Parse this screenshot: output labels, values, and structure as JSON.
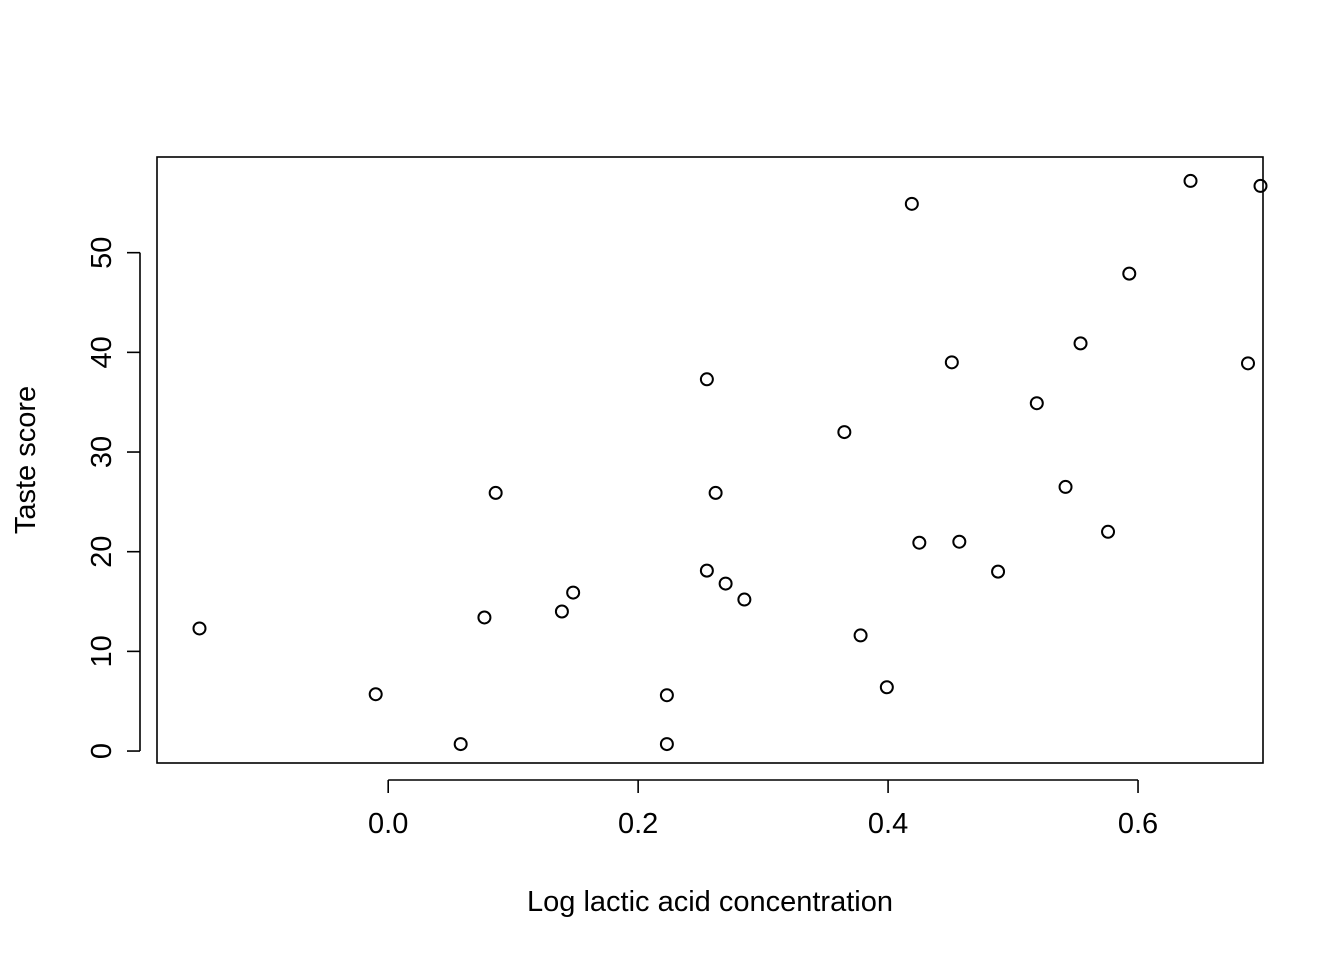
{
  "chart_data": {
    "type": "scatter",
    "title": "",
    "xlabel": "Log lactic acid concentration",
    "ylabel": "Taste score",
    "xlim": [
      -0.185,
      0.7
    ],
    "ylim": [
      -1.2,
      59.6
    ],
    "grid": false,
    "legend": "none",
    "colors": {
      "point_stroke": "#000000",
      "axis": "#000000",
      "background": "#ffffff"
    },
    "x_ticks": [
      {
        "value": 0.0,
        "label": "0.0"
      },
      {
        "value": 0.2,
        "label": "0.2"
      },
      {
        "value": 0.4,
        "label": "0.4"
      },
      {
        "value": 0.6,
        "label": "0.6"
      }
    ],
    "y_ticks": [
      {
        "value": 0,
        "label": "0"
      },
      {
        "value": 10,
        "label": "10"
      },
      {
        "value": 20,
        "label": "20"
      },
      {
        "value": 30,
        "label": "30"
      },
      {
        "value": 40,
        "label": "40"
      },
      {
        "value": 50,
        "label": "50"
      }
    ],
    "points": [
      {
        "x": -0.151,
        "y": 12.3
      },
      {
        "x": -0.01,
        "y": 5.7
      },
      {
        "x": 0.058,
        "y": 0.7
      },
      {
        "x": 0.077,
        "y": 13.4
      },
      {
        "x": 0.086,
        "y": 25.9
      },
      {
        "x": 0.139,
        "y": 14.0
      },
      {
        "x": 0.148,
        "y": 15.9
      },
      {
        "x": 0.223,
        "y": 5.6
      },
      {
        "x": 0.223,
        "y": 0.7
      },
      {
        "x": 0.255,
        "y": 37.3
      },
      {
        "x": 0.255,
        "y": 18.1
      },
      {
        "x": 0.262,
        "y": 25.9
      },
      {
        "x": 0.27,
        "y": 16.8
      },
      {
        "x": 0.285,
        "y": 15.2
      },
      {
        "x": 0.365,
        "y": 32.0
      },
      {
        "x": 0.378,
        "y": 11.6
      },
      {
        "x": 0.399,
        "y": 6.4
      },
      {
        "x": 0.419,
        "y": 54.9
      },
      {
        "x": 0.425,
        "y": 20.9
      },
      {
        "x": 0.451,
        "y": 39.0
      },
      {
        "x": 0.457,
        "y": 21.0
      },
      {
        "x": 0.488,
        "y": 18.0
      },
      {
        "x": 0.519,
        "y": 34.9
      },
      {
        "x": 0.542,
        "y": 26.5
      },
      {
        "x": 0.554,
        "y": 40.9
      },
      {
        "x": 0.576,
        "y": 22.0
      },
      {
        "x": 0.593,
        "y": 47.9
      },
      {
        "x": 0.642,
        "y": 57.2
      },
      {
        "x": 0.688,
        "y": 38.9
      },
      {
        "x": 0.698,
        "y": 56.7
      }
    ]
  }
}
